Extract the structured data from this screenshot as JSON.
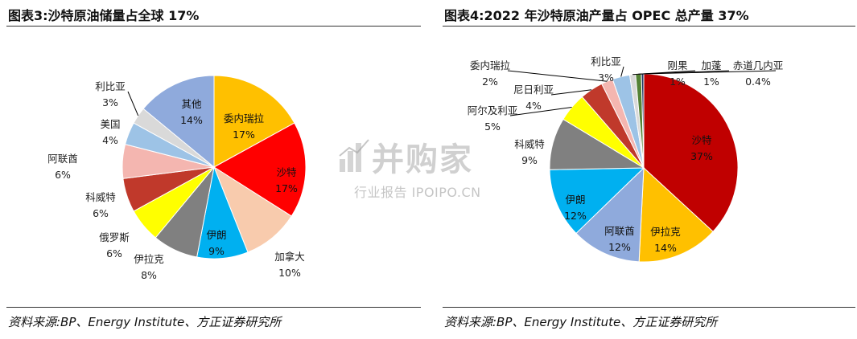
{
  "left": {
    "title": "图表3:沙特原油储量占全球 17%",
    "source": "资料来源:BP、Energy Institute、方正证券研究所"
  },
  "right": {
    "title": "图表4:2022 年沙特原油产量占 OPEC 总产量 37%",
    "source": "资料来源:BP、Energy Institute、方正证券研究所"
  },
  "watermark": {
    "brand": "并购家",
    "sub": "行业报告 IPOIPO.CN",
    "icon": "bar-chart-logo-icon"
  },
  "chart_data": [
    {
      "type": "pie",
      "title": "图表3:沙特原油储量占全球 17%",
      "slices": [
        {
          "name": "委内瑞拉",
          "value": 17,
          "label": "17%",
          "color": "#FFC000"
        },
        {
          "name": "沙特",
          "value": 17,
          "label": "17%",
          "color": "#FF0000"
        },
        {
          "name": "加拿大",
          "value": 10,
          "label": "10%",
          "color": "#F8CBAD"
        },
        {
          "name": "伊朗",
          "value": 9,
          "label": "9%",
          "color": "#00B0F0"
        },
        {
          "name": "伊拉克",
          "value": 8,
          "label": "8%",
          "color": "#808080"
        },
        {
          "name": "俄罗斯",
          "value": 6,
          "label": "6%",
          "color": "#FFFF00"
        },
        {
          "name": "科威特",
          "value": 6,
          "label": "6%",
          "color": "#C0392B"
        },
        {
          "name": "阿联酋",
          "value": 6,
          "label": "6%",
          "color": "#F4B6B0"
        },
        {
          "name": "美国",
          "value": 4,
          "label": "4%",
          "color": "#9DC3E6"
        },
        {
          "name": "利比亚",
          "value": 3,
          "label": "3%",
          "color": "#D9D9D9"
        },
        {
          "name": "其他",
          "value": 14,
          "label": "14%",
          "color": "#8FAADC"
        }
      ]
    },
    {
      "type": "pie",
      "title": "图表4:2022 年沙特原油产量占 OPEC 总产量 37%",
      "slices": [
        {
          "name": "沙特",
          "value": 37,
          "label": "37%",
          "color": "#C00000"
        },
        {
          "name": "伊拉克",
          "value": 14,
          "label": "14%",
          "color": "#FFC000"
        },
        {
          "name": "阿联酋",
          "value": 12,
          "label": "12%",
          "color": "#8FAADC"
        },
        {
          "name": "伊朗",
          "value": 12,
          "label": "12%",
          "color": "#00B0F0"
        },
        {
          "name": "科威特",
          "value": 9,
          "label": "9%",
          "color": "#808080"
        },
        {
          "name": "阿尔及利亚",
          "value": 5,
          "label": "5%",
          "color": "#FFFF00"
        },
        {
          "name": "尼日利亚",
          "value": 4,
          "label": "4%",
          "color": "#C0392B"
        },
        {
          "name": "委内瑞拉",
          "value": 2,
          "label": "2%",
          "color": "#F4B6B0"
        },
        {
          "name": "利比亚",
          "value": 3,
          "label": "3%",
          "color": "#9DC3E6"
        },
        {
          "name": "刚果",
          "value": 1,
          "label": "1%",
          "color": "#D9D9D9"
        },
        {
          "name": "加蓬",
          "value": 1,
          "label": "1%",
          "color": "#548235"
        },
        {
          "name": "赤道几内亚",
          "value": 0.4,
          "label": "0.4%",
          "color": "#1F3864"
        }
      ]
    }
  ]
}
